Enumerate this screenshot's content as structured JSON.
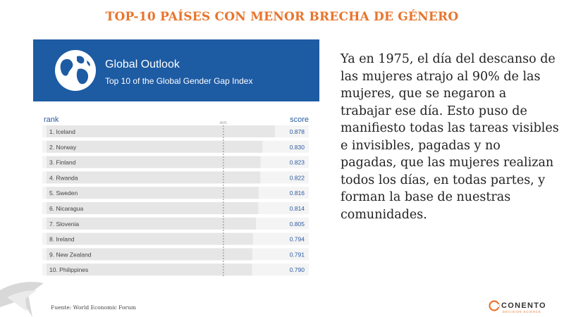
{
  "slide": {
    "title": "TOP-10 PAÍSES CON MENOR BRECHA DE GÉNERO",
    "body_text": "Ya en 1975, el día del descanso de las mujeres atrajo al 90% de las mujeres, que se negaron a trabajar ese día. Esto puso de manifiesto todas las tareas visibles e invisibles, pagadas y no pagadas, que las mujeres realizan todos los días, en todas partes, y forman la base de nuestras comunidades.",
    "source": "Fuente: World Economic Forum",
    "logo": {
      "name": "CONENTO",
      "tagline": "DECISION SCIENCE",
      "icon": "conento-c-icon"
    }
  },
  "banner": {
    "title": "Global Outlook",
    "subtitle": "Top 10 of the Global Gender Gap Index",
    "icon": "globe-icon"
  },
  "colors": {
    "banner": "#1d5ba3",
    "title": "#e8742c",
    "bar": "#e6e6e6",
    "row_stripe": "#f4f4f4"
  },
  "chart_data": {
    "type": "bar",
    "orientation": "horizontal",
    "header": {
      "category": "rank",
      "value": "score",
      "avg": "AVG"
    },
    "categories": [
      "1. Iceland",
      "2. Norway",
      "3. Finland",
      "4. Rwanda",
      "5. Sweden",
      "6. Nicaragua",
      "7. Slovenia",
      "8. Ireland",
      "9. New Zealand",
      "10. Philippines"
    ],
    "values": [
      0.878,
      0.83,
      0.823,
      0.822,
      0.816,
      0.814,
      0.805,
      0.794,
      0.791,
      0.79
    ],
    "value_labels": [
      "0.878",
      "0.830",
      "0.823",
      "0.822",
      "0.816",
      "0.814",
      "0.805",
      "0.794",
      "0.791",
      "0.790"
    ],
    "avg_value": 0.68,
    "xlim": [
      0,
      0.9
    ]
  }
}
